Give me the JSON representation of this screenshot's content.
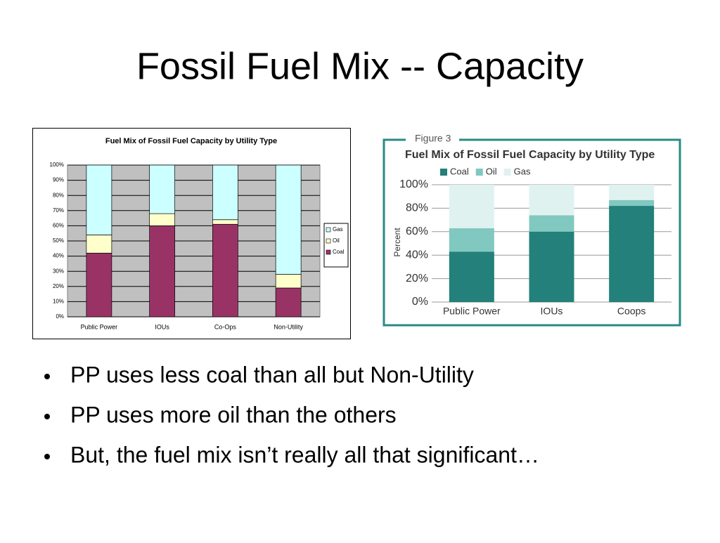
{
  "title": "Fossil Fuel Mix -- Capacity",
  "chart_data": [
    {
      "type": "bar",
      "stacked": true,
      "title": "Fuel Mix of Fossil Fuel Capacity by Utility Type",
      "categories": [
        "Public Power",
        "IOUs",
        "Co-Ops",
        "Non-Utility"
      ],
      "series": [
        {
          "name": "Coal",
          "color": "#993366",
          "values": [
            42,
            60,
            61,
            19
          ]
        },
        {
          "name": "Oil",
          "color": "#ffffcc",
          "values": [
            12,
            8,
            3,
            9
          ]
        },
        {
          "name": "Gas",
          "color": "#ccffff",
          "values": [
            46,
            32,
            36,
            72
          ]
        }
      ],
      "ylim": [
        0,
        100
      ],
      "yticks": [
        {
          "value": 0,
          "label": "0%"
        },
        {
          "value": 10,
          "label": "10%"
        },
        {
          "value": 20,
          "label": "20%"
        },
        {
          "value": 30,
          "label": "30%"
        },
        {
          "value": 40,
          "label": "40%"
        },
        {
          "value": 50,
          "label": "50%"
        },
        {
          "value": 60,
          "label": "60%"
        },
        {
          "value": 70,
          "label": "70%"
        },
        {
          "value": 80,
          "label": "80%"
        },
        {
          "value": 90,
          "label": "90%"
        },
        {
          "value": 100,
          "label": "100%"
        }
      ],
      "grid": true,
      "legend": "right"
    },
    {
      "type": "bar",
      "stacked": true,
      "figure_label": "Figure 3",
      "title": "Fuel Mix of Fossil Fuel Capacity by Utility Type",
      "ylabel": "Percent",
      "categories": [
        "Public Power",
        "IOUs",
        "Coops"
      ],
      "series": [
        {
          "name": "Coal",
          "color": "#23807a",
          "values": [
            43,
            60,
            82
          ]
        },
        {
          "name": "Oil",
          "color": "#80c8c0",
          "values": [
            20,
            14,
            5
          ]
        },
        {
          "name": "Gas",
          "color": "#e0f2f0",
          "values": [
            37,
            26,
            13
          ]
        }
      ],
      "ylim": [
        0,
        100
      ],
      "yticks": [
        {
          "value": 0,
          "label": "0%"
        },
        {
          "value": 20,
          "label": "20%"
        },
        {
          "value": 40,
          "label": "40%"
        },
        {
          "value": 60,
          "label": "60%"
        },
        {
          "value": 80,
          "label": "80%"
        },
        {
          "value": 100,
          "label": "100%"
        }
      ],
      "grid": true,
      "legend": "top"
    }
  ],
  "bullets": [
    "PP uses less coal than all but Non-Utility",
    "PP uses more oil than the others",
    "But, the fuel mix isn’t really all that significant…"
  ]
}
